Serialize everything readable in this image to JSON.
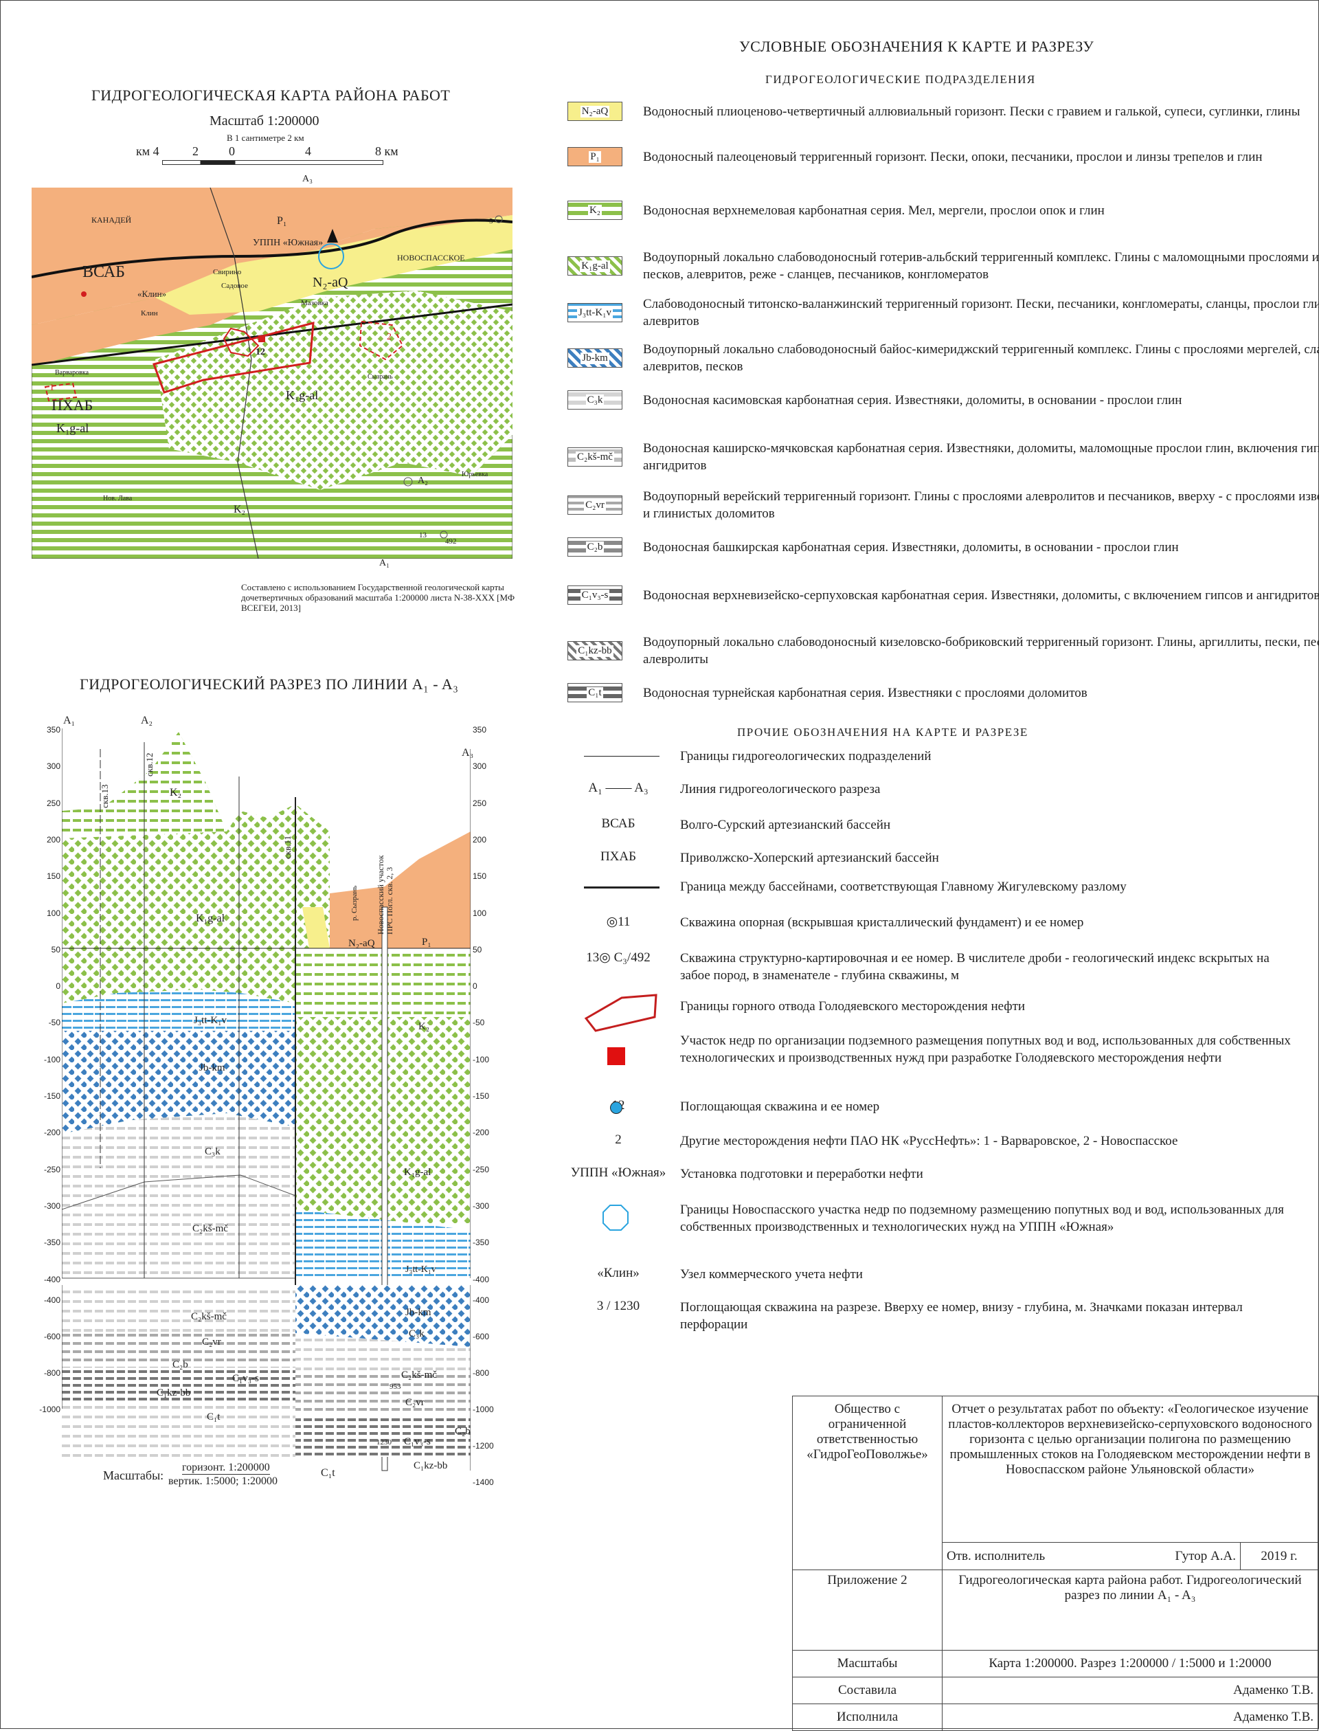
{
  "legend_title": "УСЛОВНЫЕ ОБОЗНАЧЕНИЯ К КАРТЕ И РАЗРЕЗУ",
  "legend_subtitle": "ГИДРОГЕОЛОГИЧЕСКИЕ ПОДРАЗДЕЛЕНИЯ",
  "units": [
    {
      "code": "N₂-aQ",
      "text": "Водоносный  плиоценово-четвертичный аллювиальный горизонт. Пески с гравием и галькой, супеси, суглинки, глины"
    },
    {
      "code": "P₁",
      "text": "Водоносный палеоценовый терригенный горизонт. Пески, опоки, песчаники, прослои и линзы трепелов и глин"
    },
    {
      "code": "K₂",
      "text": "Водоносная верхнемеловая карбонатная серия. Мел, мергели, прослои опок и глин"
    },
    {
      "code": "K₁g-al",
      "text": "Водоупорный локально слабоводоносный готерив-альбский терригенный комплекс. Глины с маломощными прослоями и линзами песков, алевритов, реже - сланцев, песчаников, конгломератов"
    },
    {
      "code": "J₃tt-K₁v",
      "text": "Слабоводоносный титонско-валанжинский терригенный горизонт. Пески, песчаники, конгломераты, сланцы, прослои глин и алевритов"
    },
    {
      "code": "Jb-km",
      "text": "Водоупорный локально слабоводоносный байос-кимериджский терригенный комплекс. Глины с прослоями мергелей, сланцев, алевритов, песков"
    },
    {
      "code": "C₃k",
      "text": "Водоносная касимовская карбонатная серия. Известняки, доломиты, в основании - прослои глин"
    },
    {
      "code": "C₂kš-mč",
      "text": "Водоносная каширско-мячковская карбонатная серия. Известняки, доломиты, маломощные прослои глин, включения гипсов и ангидритов"
    },
    {
      "code": "C₂vr",
      "text": "Водоупорный верейский терригенный горизонт. Глины с прослоями алевролитов и песчаников, вверху - с прослоями известняков и глинистых доломитов"
    },
    {
      "code": "C₂b",
      "text": "Водоносная башкирская карбонатная серия. Известняки, доломиты, в основании - прослои глин"
    },
    {
      "code": "C₁v₃-s",
      "text": "Водоносная верхневизейско-серпуховская карбонатная серия. Известняки, доломиты, с включением гипсов и ангидритов"
    },
    {
      "code": "C₁kz-bb",
      "text": "Водоупорный локально слабоводоносный кизеловско-бобриковский терригенный горизонт. Глины, аргиллиты, пески, песчаники, алевролиты"
    },
    {
      "code": "C₁t",
      "text": "Водоносная турнейская карбонатная серия. Известняки с прослоями доломитов"
    }
  ],
  "other_title": "ПРОЧИЕ ОБОЗНАЧЕНИЯ НА КАРТЕ И РАЗРЕЗЕ",
  "other": [
    {
      "sym": "",
      "text": "Границы гидрогеологических подразделений"
    },
    {
      "sym": "A₁ —— A₃",
      "text": "Линия гидрогеологического разреза"
    },
    {
      "sym": "ВСАБ",
      "text": "Волго-Сурский артезианский бассейн"
    },
    {
      "sym": "ПХАБ",
      "text": "Приволжско-Хоперский артезианский бассейн"
    },
    {
      "sym": "",
      "text": "Граница между бассейнами, соответствующая Главному Жигулевскому разлому"
    },
    {
      "sym": "◎11",
      "text": "Скважина опорная (вскрывшая кристаллический фундамент) и ее номер"
    },
    {
      "sym": "13◎ C₃/492",
      "text": "Скважина структурно-картировочная и ее номер. В числителе дроби - геологический индекс вскрытых на забое пород, в знаменателе - глубина скважины, м"
    },
    {
      "sym": "",
      "text": "Границы горного отвода Голодяевского месторождения нефти"
    },
    {
      "sym": "",
      "text": "Участок недр по организации подземного размещения попутных вод и вод, использованных для собственных технологических и производственных нужд при разработке Голодяевского месторождения нефти"
    },
    {
      "sym": "12",
      "text": "Поглощающая скважина и ее номер"
    },
    {
      "sym": "2",
      "text": "Другие месторождения нефти ПАО НК «РуссНефть»: 1 - Варваровское, 2 - Новоспасское"
    },
    {
      "sym": "УППН «Южная»",
      "text": "Установка подготовки и переработки нефти"
    },
    {
      "sym": "",
      "text": "Границы Новоспасского участка недр по подземному размещению попутных вод и вод, использованных для собственных производственных и технологических нужд на УППН «Южная»"
    },
    {
      "sym": "«Клин»",
      "text": "Узел коммерческого учета нефти"
    },
    {
      "sym": "3 / 1230",
      "text": "Поглощающая скважина на разрезе. Вверху ее номер, внизу - глубина, м. Значками показан интервал перфорации"
    }
  ],
  "map": {
    "title": "ГИДРОГЕОЛОГИЧЕСКАЯ КАРТА РАЙОНА РАБОТ",
    "scale": "Масштаб 1:200000",
    "scale_note": "В 1 сантиметре 2 км",
    "scale_ticks": [
      "км 4",
      "2",
      "0",
      "4",
      "8 км"
    ],
    "labels": [
      "КАНАДЕЙ",
      "ВСАБ",
      "«Клин»",
      "Клин",
      "Свирино",
      "Садовое",
      "УППН «Южная»",
      "НОВОСПАССКОЕ",
      "Мазовка",
      "Варваровка",
      "ПХАБ",
      "Нов. Лава",
      "Юрьевка",
      "Сызрань"
    ],
    "units": [
      "P₁",
      "N₂-aQ",
      "K₁g-al",
      "K₁g-al",
      "K₂"
    ],
    "line_labels": [
      "A₃",
      "A₁",
      "A₂"
    ],
    "wells": [
      "12",
      "13",
      "492",
      "5"
    ],
    "fields": [
      "1",
      "2"
    ],
    "source": "Составлено с использованием Государственной геологической карты дочетвертичных образований масштаба 1:200000 листа N-38-XXX [МФ ВСЕГЕИ, 2013]"
  },
  "section": {
    "title": "ГИДРОГЕОЛОГИЧЕСКИЙ РАЗРЕЗ ПО ЛИНИИ A₁ - A₃",
    "left_label": "A₁",
    "mid_label": "A₂",
    "right_label": "A₃",
    "axis_upper": [
      "350",
      "300",
      "250",
      "200",
      "150",
      "100",
      "50",
      "0",
      "-50",
      "-100",
      "-150",
      "-200",
      "-250",
      "-300",
      "-350",
      "-400"
    ],
    "axis_lower": [
      "-400",
      "-600",
      "-800",
      "-1000",
      "-1200",
      "-1400"
    ],
    "wells": [
      "скв.13",
      "скв.12",
      "скв.11"
    ],
    "river": "р. Сызрань",
    "site_label": "Новоспасский участок ПРС Погл. скв. 2, 3",
    "units": [
      "K₂",
      "K₁g-al",
      "J₃tt-K₁v",
      "Jb-km",
      "C₃k",
      "C₂kš-mč",
      "N₂-aQ",
      "P₁",
      "K₂",
      "K₁g-al",
      "J₃tt-K₁v"
    ],
    "lower_units": [
      "C₂kš-mč",
      "C₂vr",
      "C₂b",
      "C₁v₃-s",
      "C₁kz-bb",
      "C₁t",
      "Jb-km",
      "C₃k",
      "C₂kš-mč",
      "C₂vr",
      "C₁v₃-s",
      "C₁kz-bb",
      "C₂b",
      "C₁t"
    ],
    "depths": [
      "953",
      "1230"
    ],
    "scales_label": "Масштабы:",
    "scale_h": "горизонт. 1:200000",
    "scale_v": "вертик. 1:5000; 1:20000"
  },
  "stamp": {
    "org": "Общество с ограниченной ответственностью «ГидроГеоПоволжье»",
    "report": "Отчет о результатах работ по объекту: «Геологическое изучение пластов-коллекторов верхневизейско-серпуховского водоносного горизонта с целью организации полигона по размещению промышленных стоков на Голодяевском месторождении нефти в Новоспасском районе Ульяновской области»",
    "resp_label": "Отв. исполнитель",
    "resp_name": "Гутор А.А.",
    "year": "2019 г.",
    "appendix": "Приложение 2",
    "appendix_title": "Гидрогеологическая карта района работ. Гидрогеологический разрез по линии A₁ - A₃",
    "scales_label": "Масштабы",
    "scales_value": "Карта 1:200000. Разрез 1:200000 / 1:5000 и 1:20000",
    "compiled_label": "Составила",
    "compiled_name": "Адаменко Т.В.",
    "done_label": "Исполнила",
    "done_name": "Адаменко Т.В."
  },
  "colors": {
    "yellow": "#f7ef8c",
    "orange": "#f4b07d",
    "green": "#8cc04a",
    "blue": "#4aa6df",
    "red": "#d21e1e"
  }
}
